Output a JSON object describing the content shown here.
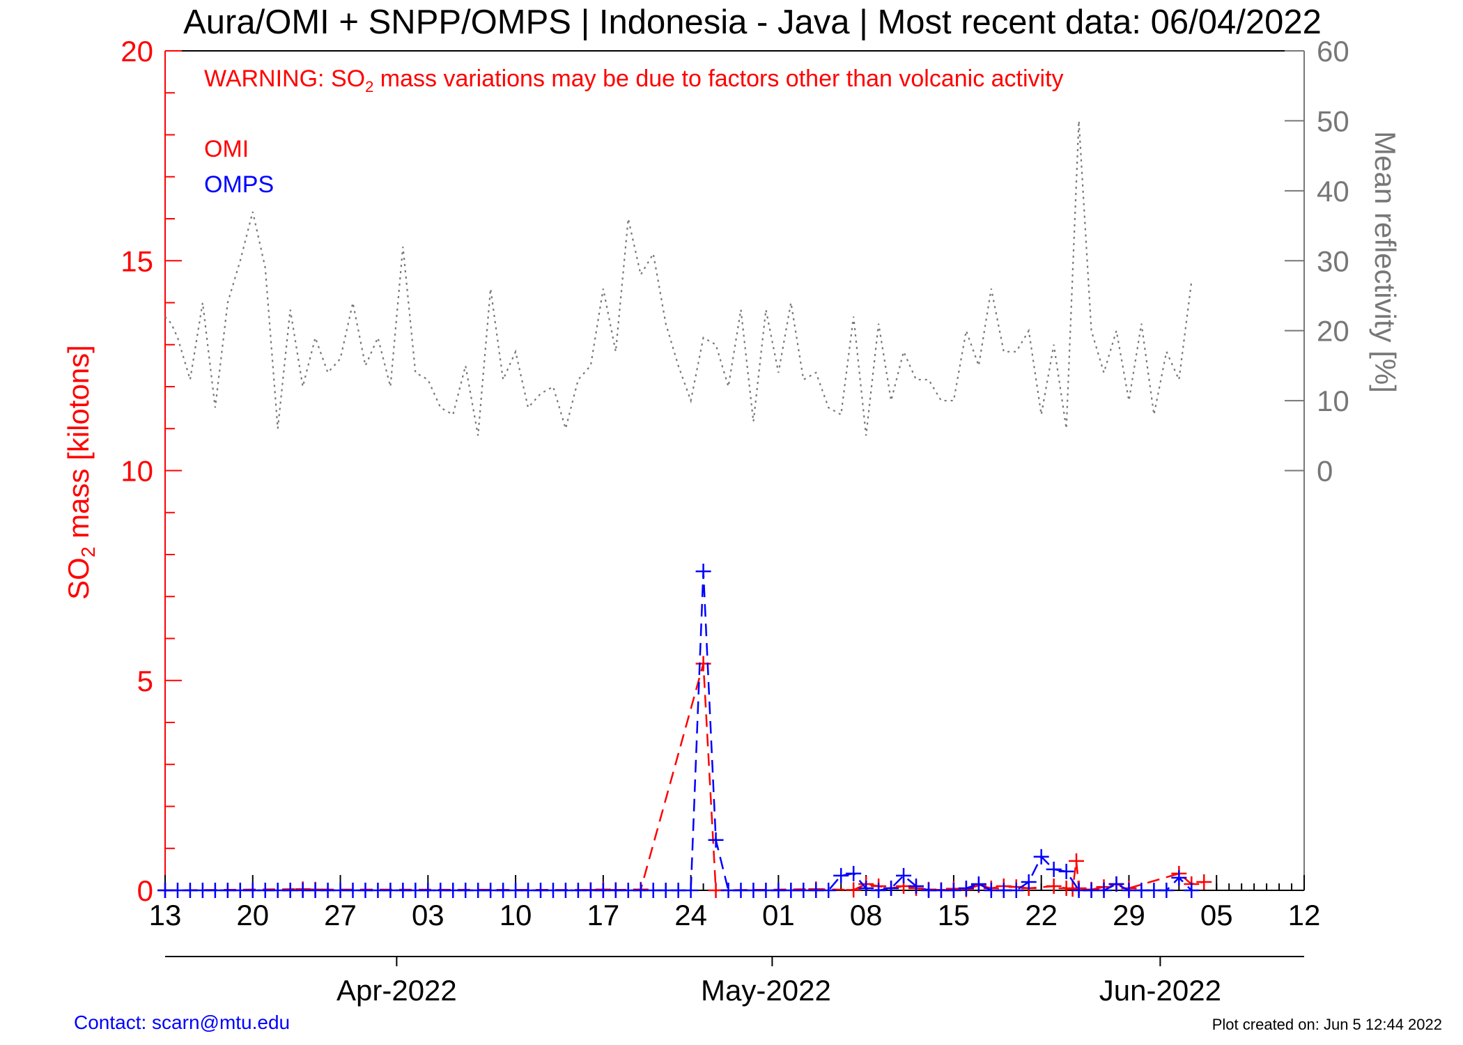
{
  "chart_data": {
    "type": "line",
    "title": "Aura/OMI + SNPP/OMPS | Indonesia - Java | Most recent data: 06/04/2022",
    "warning": {
      "pre": "WARNING: SO",
      "sub": "2",
      "post": " mass variations may be due to factors other than volcanic activity"
    },
    "legend": {
      "omi": "OMI",
      "omps": "OMPS",
      "placement": "top-left"
    },
    "ylabel_left": {
      "pre": "SO",
      "sub": "2",
      "post": " mass [kilotons]"
    },
    "ylabel_right": "Mean reflectivity [%]",
    "x_start_date": "2022-03-13",
    "x_range_days": [
      0,
      91
    ],
    "x_ticks": [
      {
        "day": 0,
        "label": "13"
      },
      {
        "day": 7,
        "label": "20"
      },
      {
        "day": 14,
        "label": "27"
      },
      {
        "day": 21,
        "label": "03"
      },
      {
        "day": 28,
        "label": "10"
      },
      {
        "day": 35,
        "label": "17"
      },
      {
        "day": 42,
        "label": "24"
      },
      {
        "day": 49,
        "label": "01"
      },
      {
        "day": 56,
        "label": "08"
      },
      {
        "day": 63,
        "label": "15"
      },
      {
        "day": 70,
        "label": "22"
      },
      {
        "day": 77,
        "label": "29"
      },
      {
        "day": 84,
        "label": "05"
      },
      {
        "day": 91,
        "label": "12"
      }
    ],
    "months": [
      {
        "label": "Apr-2022",
        "tick_day": 18.5,
        "label_day": 18.5
      },
      {
        "label": "May-2022",
        "tick_day": 48.5,
        "label_day": 48
      },
      {
        "label": "Jun-2022",
        "tick_day": 79.5,
        "label_day": 79.5
      }
    ],
    "ylim_left": [
      0,
      20
    ],
    "y_ticks_left": [
      0,
      5,
      10,
      15,
      20
    ],
    "y_ticks_right": [
      0,
      10,
      20,
      30,
      40,
      50,
      60
    ],
    "ylim_right": [
      -60,
      60
    ],
    "grid": false,
    "series": [
      {
        "name": "OMI",
        "color": "#ff0000",
        "style": "dashed",
        "points": [
          [
            0,
            0
          ],
          [
            11,
            0.03
          ],
          [
            12,
            0.02
          ],
          [
            34,
            0.01
          ],
          [
            35,
            0.02
          ],
          [
            36,
            0.01
          ],
          [
            38,
            0.02
          ],
          [
            43,
            5.4
          ],
          [
            44,
            0
          ],
          [
            52,
            0.03
          ],
          [
            55,
            0.01
          ],
          [
            56,
            0.15
          ],
          [
            57,
            0.1
          ],
          [
            58,
            0.05
          ],
          [
            59,
            0.1
          ],
          [
            60,
            0.05
          ],
          [
            61,
            0.02
          ],
          [
            62,
            0.01
          ],
          [
            63,
            0.04
          ],
          [
            64,
            0.02
          ],
          [
            65,
            0.12
          ],
          [
            66,
            0.05
          ],
          [
            67,
            0.1
          ],
          [
            68,
            0.08
          ],
          [
            69,
            0.05
          ],
          [
            71,
            0.1
          ],
          [
            72,
            0.05
          ],
          [
            72.5,
            0.03
          ],
          [
            72.8,
            0.7
          ],
          [
            73,
            0.05
          ],
          [
            74,
            0.02
          ],
          [
            75,
            0.08
          ],
          [
            76,
            0.15
          ],
          [
            77,
            0.05
          ],
          [
            81,
            0.4
          ],
          [
            82,
            0.15
          ],
          [
            83,
            0.2
          ]
        ]
      },
      {
        "name": "OMPS",
        "color": "#0000ff",
        "style": "dashed",
        "points": [
          [
            0,
            0
          ],
          [
            1,
            0
          ],
          [
            2,
            0
          ],
          [
            3,
            0
          ],
          [
            4,
            0
          ],
          [
            5,
            0
          ],
          [
            6,
            0
          ],
          [
            7,
            0
          ],
          [
            8,
            0
          ],
          [
            9,
            0
          ],
          [
            10,
            0
          ],
          [
            11,
            0
          ],
          [
            12,
            0
          ],
          [
            13,
            0
          ],
          [
            14,
            0
          ],
          [
            15,
            0
          ],
          [
            16,
            0
          ],
          [
            17,
            0
          ],
          [
            18,
            0
          ],
          [
            19,
            0
          ],
          [
            20,
            0
          ],
          [
            21,
            0
          ],
          [
            22,
            0
          ],
          [
            23,
            0
          ],
          [
            24,
            0
          ],
          [
            25,
            0
          ],
          [
            26,
            0
          ],
          [
            27,
            0
          ],
          [
            28,
            0
          ],
          [
            29,
            0
          ],
          [
            30,
            0
          ],
          [
            31,
            0
          ],
          [
            32,
            0
          ],
          [
            33,
            0
          ],
          [
            34,
            0
          ],
          [
            35,
            0
          ],
          [
            36,
            0
          ],
          [
            37,
            0
          ],
          [
            38,
            0
          ],
          [
            39,
            0
          ],
          [
            40,
            0
          ],
          [
            41,
            0
          ],
          [
            42,
            0
          ],
          [
            43,
            7.6
          ],
          [
            44,
            1.2
          ],
          [
            45,
            0
          ],
          [
            46,
            0
          ],
          [
            47,
            0
          ],
          [
            48,
            0
          ],
          [
            49,
            0
          ],
          [
            50,
            0
          ],
          [
            51,
            0
          ],
          [
            52,
            0
          ],
          [
            53,
            0
          ],
          [
            54,
            0.35
          ],
          [
            55,
            0.4
          ],
          [
            56,
            0.05
          ],
          [
            57,
            0
          ],
          [
            58,
            0.05
          ],
          [
            59,
            0.35
          ],
          [
            60,
            0.1
          ],
          [
            61,
            0
          ],
          [
            62,
            0
          ],
          [
            63,
            0
          ],
          [
            64,
            0.05
          ],
          [
            65,
            0.15
          ],
          [
            66,
            0
          ],
          [
            67,
            0
          ],
          [
            68,
            0
          ],
          [
            69,
            0.2
          ],
          [
            70,
            0.8
          ],
          [
            71,
            0.5
          ],
          [
            72,
            0.45
          ],
          [
            73,
            0
          ],
          [
            74,
            0
          ],
          [
            75,
            0
          ],
          [
            76,
            0.15
          ],
          [
            77,
            0
          ],
          [
            78,
            0
          ],
          [
            79,
            0
          ],
          [
            80,
            0
          ],
          [
            81,
            0.3
          ],
          [
            82,
            0
          ]
        ]
      },
      {
        "name": "Mean reflectivity",
        "color": "#777777",
        "style": "dotted",
        "axis": "right",
        "points": [
          [
            0,
            22
          ],
          [
            0.5,
            21
          ],
          [
            1,
            19
          ],
          [
            2,
            13
          ],
          [
            3,
            24
          ],
          [
            4,
            9
          ],
          [
            5,
            24
          ],
          [
            6,
            30
          ],
          [
            7,
            37
          ],
          [
            8,
            29
          ],
          [
            9,
            6
          ],
          [
            10,
            23
          ],
          [
            11,
            12
          ],
          [
            12,
            19
          ],
          [
            13,
            14
          ],
          [
            14,
            16
          ],
          [
            15,
            24
          ],
          [
            16,
            15
          ],
          [
            17,
            19
          ],
          [
            18,
            12
          ],
          [
            19,
            32
          ],
          [
            20,
            14
          ],
          [
            21,
            13
          ],
          [
            22,
            9
          ],
          [
            23,
            8
          ],
          [
            24,
            15
          ],
          [
            25,
            5
          ],
          [
            26,
            26
          ],
          [
            27,
            13
          ],
          [
            28,
            17
          ],
          [
            29,
            9
          ],
          [
            30,
            11
          ],
          [
            31,
            12
          ],
          [
            32,
            6
          ],
          [
            33,
            13
          ],
          [
            34,
            15
          ],
          [
            35,
            26
          ],
          [
            36,
            17
          ],
          [
            37,
            36
          ],
          [
            38,
            28
          ],
          [
            39,
            31
          ],
          [
            40,
            21
          ],
          [
            41,
            15
          ],
          [
            42,
            10
          ],
          [
            43,
            19
          ],
          [
            44,
            18
          ],
          [
            45,
            12
          ],
          [
            46,
            23
          ],
          [
            47,
            7
          ],
          [
            48,
            23
          ],
          [
            49,
            14
          ],
          [
            50,
            24
          ],
          [
            51,
            13
          ],
          [
            52,
            14
          ],
          [
            53,
            9
          ],
          [
            54,
            8
          ],
          [
            55,
            22
          ],
          [
            56,
            5
          ],
          [
            57,
            21
          ],
          [
            58,
            10
          ],
          [
            59,
            17
          ],
          [
            60,
            13
          ],
          [
            61,
            13
          ],
          [
            62,
            10
          ],
          [
            63,
            10
          ],
          [
            64,
            20
          ],
          [
            65,
            15
          ],
          [
            66,
            26
          ],
          [
            67,
            17
          ],
          [
            68,
            17
          ],
          [
            69,
            20
          ],
          [
            70,
            8
          ],
          [
            71,
            18
          ],
          [
            72,
            6
          ],
          [
            73,
            50
          ],
          [
            74,
            20
          ],
          [
            75,
            14
          ],
          [
            76,
            20
          ],
          [
            77,
            10
          ],
          [
            78,
            21
          ],
          [
            79,
            8
          ],
          [
            80,
            17
          ],
          [
            81,
            13
          ],
          [
            82,
            27
          ]
        ]
      }
    ]
  },
  "footer": {
    "contact": "Contact: scarn@mtu.edu",
    "created": "Plot created on: Jun  5 12:44 2022"
  }
}
